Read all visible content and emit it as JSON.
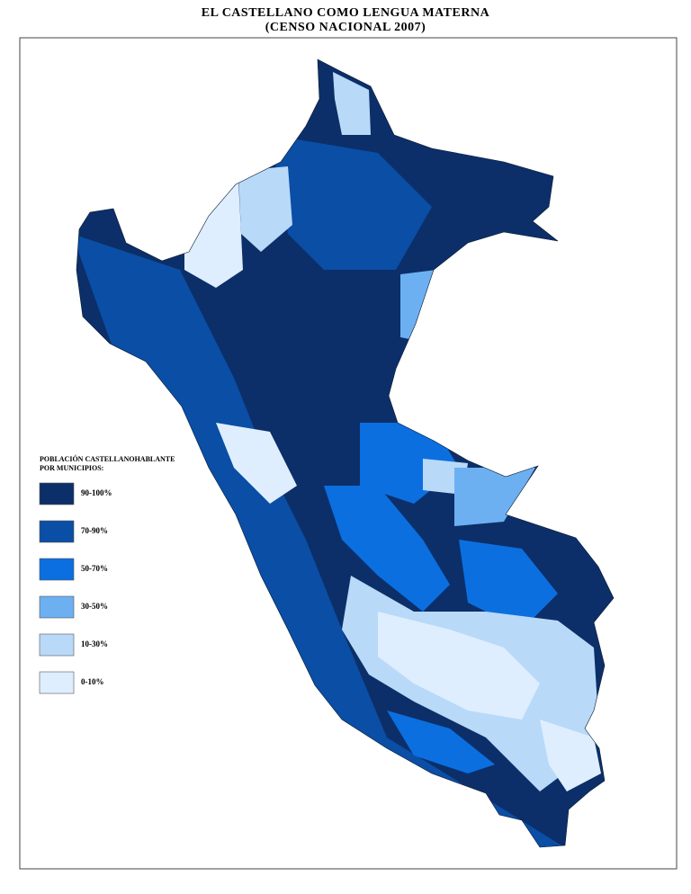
{
  "header": {
    "title": "EL CASTELLANO COMO LENGUA MATERNA",
    "subtitle": "(CENSO NACIONAL 2007)"
  },
  "legend": {
    "title_lines": [
      "POBLACIÓN CASTELLANOHABLANTE",
      "POR MUNICIPIOS:"
    ],
    "items": [
      {
        "label": "90-100%",
        "color": "#0c2f69"
      },
      {
        "label": "70-90%",
        "color": "#0a4ea5"
      },
      {
        "label": "50-70%",
        "color": "#0b6fe0"
      },
      {
        "label": "30-50%",
        "color": "#6cb0f2"
      },
      {
        "label": "10-30%",
        "color": "#b9d9f8"
      },
      {
        "label": "0-10%",
        "color": "#deeeff"
      }
    ]
  }
}
